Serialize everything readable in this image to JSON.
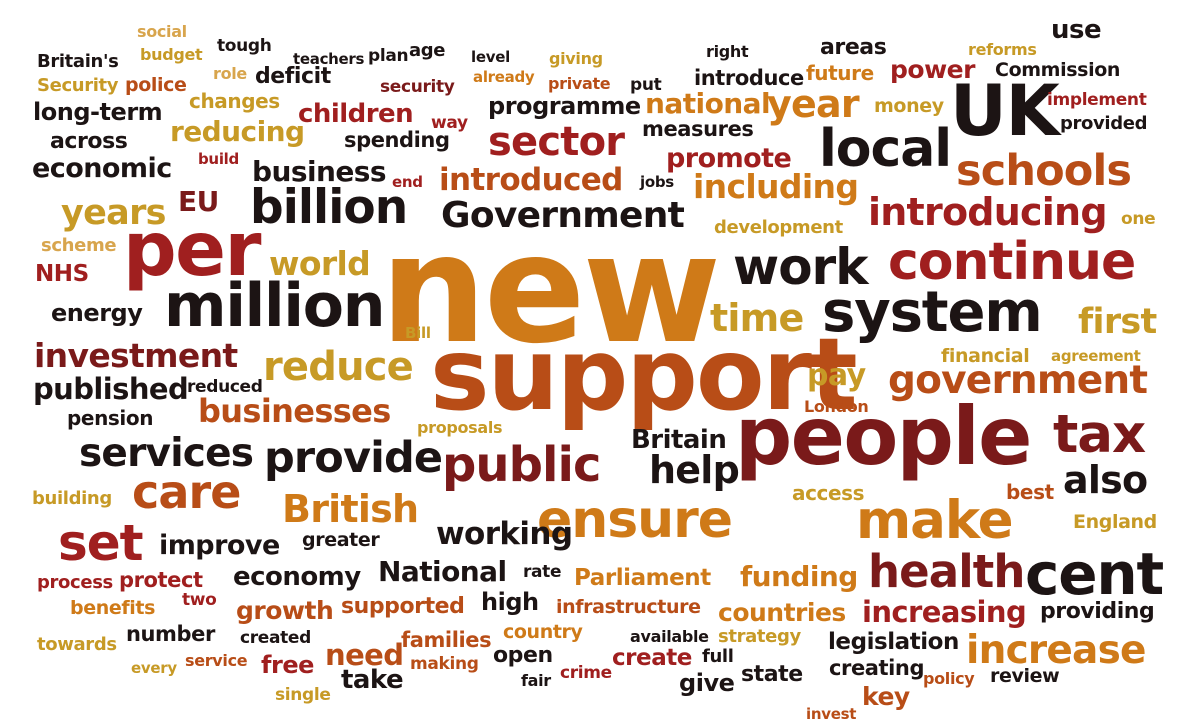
{
  "colors": {
    "background": "#ffffff",
    "dark": "#1c1414",
    "maroon": "#7a1a1a",
    "red": "#a01f1f",
    "rust": "#b84d17",
    "orange": "#cf7a18",
    "gold": "#c79a26",
    "light": "#d8a54d"
  },
  "words": [
    "social",
    "use",
    "Britain's",
    "budget",
    "tough",
    "teachers",
    "plan",
    "age",
    "level",
    "giving",
    "right",
    "areas",
    "reforms",
    "Security",
    "police",
    "role",
    "deficit",
    "security",
    "already",
    "private",
    "put",
    "introduce",
    "future",
    "power",
    "Commission",
    "long-term",
    "changes",
    "children",
    "programme",
    "national",
    "year",
    "money",
    "UK",
    "implement",
    "across",
    "reducing",
    "spending",
    "way",
    "measures",
    "provided",
    "sector",
    "economic",
    "build",
    "promote",
    "local",
    "business",
    "end",
    "jobs",
    "schools",
    "introduced",
    "including",
    "years",
    "EU",
    "billion",
    "Government",
    "one",
    "introducing",
    "scheme",
    "development",
    "per",
    "NHS",
    "world",
    "new",
    "work",
    "continue",
    "energy",
    "million",
    "system",
    "time",
    "first",
    "Bill",
    "investment",
    "financial",
    "agreement",
    "published",
    "reduce",
    "support",
    "pay",
    "reduced",
    "government",
    "pension",
    "businesses",
    "London",
    "proposals",
    "tax",
    "services",
    "Britain",
    "people",
    "provide",
    "public",
    "help",
    "also",
    "care",
    "British",
    "access",
    "best",
    "building",
    "England",
    "ensure",
    "make",
    "set",
    "working",
    "improve",
    "greater",
    "cent",
    "process",
    "National",
    "rate",
    "economy",
    "funding",
    "health",
    "protect",
    "Parliament",
    "benefits",
    "two",
    "growth",
    "supported",
    "high",
    "infrastructure",
    "countries",
    "increasing",
    "providing",
    "towards",
    "number",
    "created",
    "country",
    "families",
    "strategy",
    "legislation",
    "increase",
    "available",
    "every",
    "service",
    "free",
    "need",
    "making",
    "open",
    "create",
    "full",
    "creating",
    "state",
    "single",
    "take",
    "fair",
    "crime",
    "give",
    "policy",
    "review",
    "key",
    "invest"
  ]
}
